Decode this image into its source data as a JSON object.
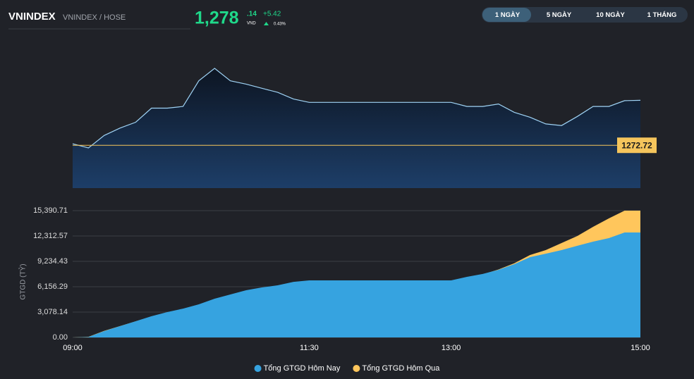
{
  "header": {
    "symbol": "VNINDEX",
    "exchange": "VNINDEX / HOSE",
    "price_int": "1,278",
    "price_dec": ".14",
    "currency": "VND",
    "change": "+5.42",
    "change_pct": "0.43%"
  },
  "tabs": {
    "items": [
      "1 NGÀY",
      "5 NGÀY",
      "10 NGÀY",
      "1 THÁNG"
    ],
    "active": 0
  },
  "chart_data": [
    {
      "type": "line",
      "color": "#9fd3f5",
      "reference": 1272.72,
      "reference_color": "#f5c55c",
      "x": [
        "09:00",
        "09:10",
        "09:20",
        "09:30",
        "09:40",
        "09:50",
        "10:00",
        "10:10",
        "10:20",
        "10:30",
        "10:40",
        "10:50",
        "11:00",
        "11:10",
        "11:20",
        "11:30",
        "11:40",
        "11:50",
        "12:00",
        "12:10",
        "12:20",
        "12:30",
        "12:40",
        "12:50",
        "13:00",
        "13:10",
        "13:20",
        "13:30",
        "13:40",
        "13:50",
        "14:00",
        "14:10",
        "14:20",
        "14:30",
        "14:40",
        "14:50",
        "15:00"
      ],
      "values": [
        1272.9,
        1272.4,
        1273.9,
        1274.8,
        1275.5,
        1277.2,
        1277.2,
        1277.4,
        1280.5,
        1282.0,
        1280.5,
        1280.1,
        1279.6,
        1279.1,
        1278.3,
        1277.9,
        1277.9,
        1277.9,
        1277.9,
        1277.9,
        1277.9,
        1277.9,
        1277.9,
        1277.9,
        1277.9,
        1277.4,
        1277.4,
        1277.7,
        1276.7,
        1276.1,
        1275.3,
        1275.1,
        1276.2,
        1277.4,
        1277.4,
        1278.1,
        1278.14
      ]
    },
    {
      "type": "area",
      "ylabel": "GTGD (TỶ)",
      "grid": true,
      "legend": "bottom",
      "x": [
        "09:00",
        "09:10",
        "09:20",
        "09:30",
        "09:40",
        "09:50",
        "10:00",
        "10:10",
        "10:20",
        "10:30",
        "10:40",
        "10:50",
        "11:00",
        "11:10",
        "11:20",
        "11:30",
        "11:40",
        "11:50",
        "12:00",
        "12:10",
        "12:20",
        "12:30",
        "12:40",
        "12:50",
        "13:00",
        "13:10",
        "13:20",
        "13:30",
        "13:40",
        "13:50",
        "14:00",
        "14:10",
        "14:20",
        "14:30",
        "14:40",
        "14:50",
        "15:00"
      ],
      "xticks": [
        "09:00",
        "11:30",
        "13:00",
        "15:00"
      ],
      "ylim": [
        0,
        15390.71
      ],
      "yticks": [
        {
          "value": 0,
          "label": "0.00"
        },
        {
          "value": 3078.14,
          "label": "3,078.14"
        },
        {
          "value": 6156.29,
          "label": "6,156.29"
        },
        {
          "value": 9234.43,
          "label": "9,234.43"
        },
        {
          "value": 12312.57,
          "label": "12,312.57"
        },
        {
          "value": 15390.71,
          "label": "15,390.71"
        }
      ],
      "series": [
        {
          "name": "Tổng GTGD Hôm Nay",
          "color": "#36a3e0",
          "values": [
            0,
            50,
            770,
            1370,
            1970,
            2570,
            3080,
            3500,
            4020,
            4700,
            5220,
            5730,
            6070,
            6330,
            6750,
            6930,
            6930,
            6930,
            6930,
            6930,
            6930,
            6930,
            6930,
            6930,
            6930,
            7350,
            7700,
            8210,
            8890,
            9750,
            10170,
            10600,
            11120,
            11630,
            12060,
            12740,
            12740
          ]
        },
        {
          "name": "Tổng GTGD Hôm Qua",
          "color": "#ffc65c",
          "values": [
            0,
            80,
            800,
            1380,
            1960,
            2550,
            3050,
            3450,
            3980,
            4650,
            5150,
            5650,
            6000,
            6250,
            6650,
            6850,
            6850,
            6850,
            6850,
            6850,
            6850,
            6850,
            6850,
            6850,
            6850,
            7250,
            7650,
            8250,
            9000,
            10000,
            10600,
            11460,
            12310,
            13420,
            14450,
            15390.71,
            15390.71
          ]
        }
      ]
    }
  ]
}
